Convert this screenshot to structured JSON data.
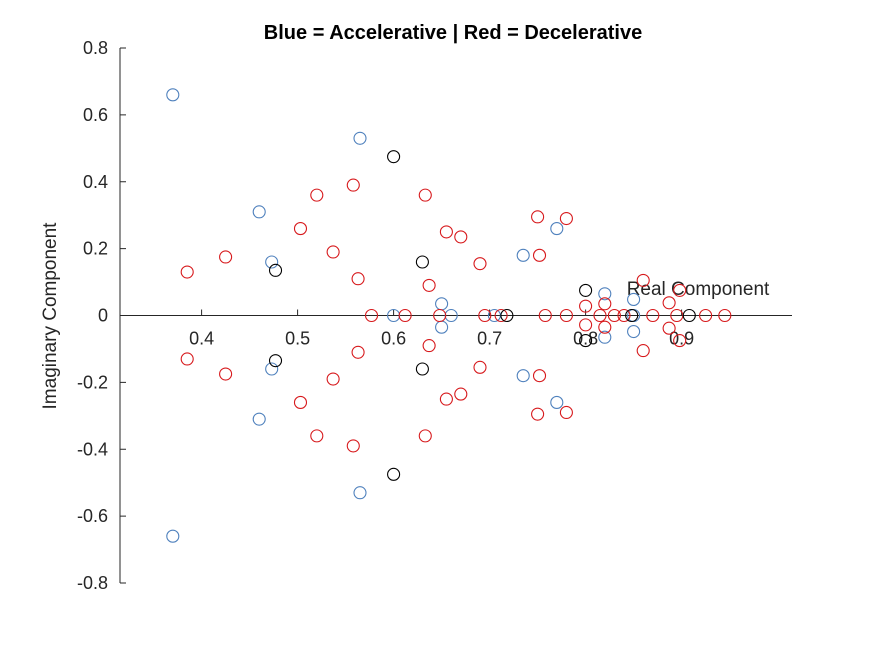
{
  "chart_data": {
    "type": "scatter",
    "title": "Blue = Accelerative | Red = Decelerative",
    "xlabel": "Real Component",
    "ylabel": "Imaginary Component",
    "xlim": [
      0.315,
      1.015
    ],
    "ylim": [
      -0.8,
      0.8
    ],
    "x_ticks": [
      0.4,
      0.5,
      0.6,
      0.7,
      0.8,
      0.9
    ],
    "y_ticks": [
      -0.8,
      -0.6,
      -0.4,
      -0.2,
      0,
      0.2,
      0.4,
      0.6,
      0.8
    ],
    "x_tick_labels": [
      "0.4",
      "0.5",
      "0.6",
      "0.7",
      "0.8",
      "0.9"
    ],
    "y_tick_labels": [
      "-0.8",
      "-0.6",
      "-0.4",
      "-0.2",
      "0",
      "0.2",
      "0.4",
      "0.6",
      "0.8"
    ],
    "axis_location": "origin",
    "grid": false,
    "marker": "open-circle",
    "series": [
      {
        "color": "#4f81bd",
        "points": [
          [
            0.37,
            0.66
          ],
          [
            0.37,
            -0.66
          ],
          [
            0.565,
            0.53
          ],
          [
            0.565,
            -0.53
          ],
          [
            0.46,
            0.31
          ],
          [
            0.46,
            -0.31
          ],
          [
            0.473,
            0.16
          ],
          [
            0.473,
            -0.16
          ],
          [
            0.77,
            0.26
          ],
          [
            0.77,
            -0.26
          ],
          [
            0.735,
            0.18
          ],
          [
            0.735,
            -0.18
          ],
          [
            0.65,
            0.035
          ],
          [
            0.65,
            -0.035
          ],
          [
            0.82,
            0.065
          ],
          [
            0.82,
            -0.065
          ],
          [
            0.85,
            0.048
          ],
          [
            0.85,
            -0.048
          ],
          [
            0.6,
            0
          ],
          [
            0.66,
            0
          ],
          [
            0.705,
            0
          ],
          [
            0.85,
            0
          ]
        ]
      },
      {
        "color": "#d7191c",
        "points": [
          [
            0.385,
            0.13
          ],
          [
            0.385,
            -0.13
          ],
          [
            0.425,
            0.175
          ],
          [
            0.425,
            -0.175
          ],
          [
            0.503,
            0.26
          ],
          [
            0.503,
            -0.26
          ],
          [
            0.52,
            0.36
          ],
          [
            0.52,
            -0.36
          ],
          [
            0.537,
            0.19
          ],
          [
            0.537,
            -0.19
          ],
          [
            0.558,
            0.39
          ],
          [
            0.558,
            -0.39
          ],
          [
            0.563,
            0.11
          ],
          [
            0.563,
            -0.11
          ],
          [
            0.633,
            0.36
          ],
          [
            0.633,
            -0.36
          ],
          [
            0.637,
            0.09
          ],
          [
            0.637,
            -0.09
          ],
          [
            0.655,
            0.25
          ],
          [
            0.655,
            -0.25
          ],
          [
            0.67,
            0.235
          ],
          [
            0.67,
            -0.235
          ],
          [
            0.69,
            0.155
          ],
          [
            0.69,
            -0.155
          ],
          [
            0.75,
            0.295
          ],
          [
            0.75,
            -0.295
          ],
          [
            0.752,
            0.18
          ],
          [
            0.752,
            -0.18
          ],
          [
            0.78,
            0.29
          ],
          [
            0.78,
            -0.29
          ],
          [
            0.8,
            0.028
          ],
          [
            0.8,
            -0.028
          ],
          [
            0.82,
            0.035
          ],
          [
            0.82,
            -0.035
          ],
          [
            0.86,
            0.105
          ],
          [
            0.86,
            -0.105
          ],
          [
            0.887,
            0.038
          ],
          [
            0.887,
            -0.038
          ],
          [
            0.898,
            0.075
          ],
          [
            0.898,
            -0.075
          ],
          [
            0.577,
            0
          ],
          [
            0.612,
            0
          ],
          [
            0.648,
            0
          ],
          [
            0.695,
            0
          ],
          [
            0.712,
            0
          ],
          [
            0.758,
            0
          ],
          [
            0.78,
            0
          ],
          [
            0.815,
            0
          ],
          [
            0.83,
            0
          ],
          [
            0.84,
            0
          ],
          [
            0.87,
            0
          ],
          [
            0.895,
            0
          ],
          [
            0.925,
            0
          ],
          [
            0.945,
            0
          ]
        ]
      },
      {
        "color": "#000000",
        "points": [
          [
            0.6,
            0.475
          ],
          [
            0.6,
            -0.475
          ],
          [
            0.477,
            0.135
          ],
          [
            0.477,
            -0.135
          ],
          [
            0.63,
            0.16
          ],
          [
            0.63,
            -0.16
          ],
          [
            0.8,
            0.075
          ],
          [
            0.8,
            -0.075
          ],
          [
            0.718,
            0
          ],
          [
            0.848,
            0
          ],
          [
            0.908,
            0
          ]
        ]
      }
    ]
  }
}
